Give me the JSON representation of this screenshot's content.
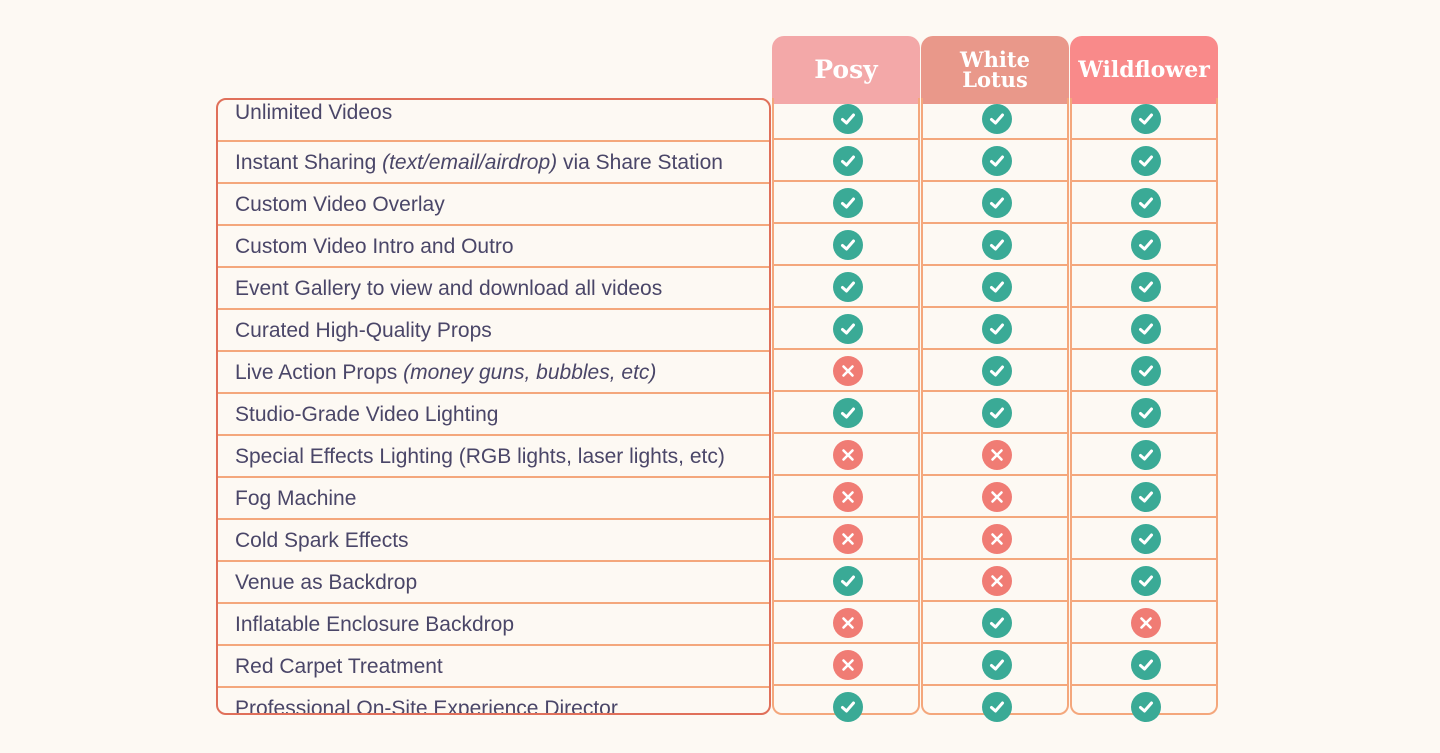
{
  "colors": {
    "background": "#fdf9f3",
    "feature_border": "#e0705a",
    "row_separator": "#f4a77c",
    "check": "#3aaa96",
    "cross": "#f07c74",
    "text": "#4a4668"
  },
  "packages": [
    {
      "key": "posy",
      "name_lines": [
        "Posy"
      ],
      "color": "#f3a8a8"
    },
    {
      "key": "white-lotus",
      "name_lines": [
        "White",
        "Lotus"
      ],
      "color": "#e9988a"
    },
    {
      "key": "wildflower",
      "name_lines": [
        "Wildflower"
      ],
      "color": "#f98a8a"
    }
  ],
  "features": [
    {
      "label": "Unlimited Videos",
      "values": [
        true,
        true,
        true
      ]
    },
    {
      "label": "Instant Sharing ",
      "note": "(text/email/airdrop)",
      "suffix": " via Share Station",
      "values": [
        true,
        true,
        true
      ]
    },
    {
      "label": "Custom Video Overlay",
      "values": [
        true,
        true,
        true
      ]
    },
    {
      "label": "Custom Video Intro and Outro",
      "values": [
        true,
        true,
        true
      ]
    },
    {
      "label": "Event Gallery to view and download all videos",
      "values": [
        true,
        true,
        true
      ]
    },
    {
      "label": "Curated High-Quality Props",
      "values": [
        true,
        true,
        true
      ]
    },
    {
      "label": "Live Action Props ",
      "note": "(money guns, bubbles, etc)",
      "values": [
        false,
        true,
        true
      ]
    },
    {
      "label": "Studio-Grade Video Lighting",
      "values": [
        true,
        true,
        true
      ]
    },
    {
      "label": "Special Effects Lighting (RGB lights, laser lights, etc)",
      "values": [
        false,
        false,
        true
      ]
    },
    {
      "label": "Fog Machine",
      "values": [
        false,
        false,
        true
      ]
    },
    {
      "label": "Cold Spark Effects",
      "values": [
        false,
        false,
        true
      ]
    },
    {
      "label": "Venue as Backdrop",
      "values": [
        true,
        false,
        true
      ]
    },
    {
      "label": "Inflatable Enclosure Backdrop",
      "values": [
        false,
        true,
        false
      ]
    },
    {
      "label": "Red Carpet Treatment",
      "values": [
        false,
        true,
        true
      ]
    },
    {
      "label": "Professional On-Site Experience Director",
      "values": [
        true,
        true,
        true
      ]
    }
  ]
}
